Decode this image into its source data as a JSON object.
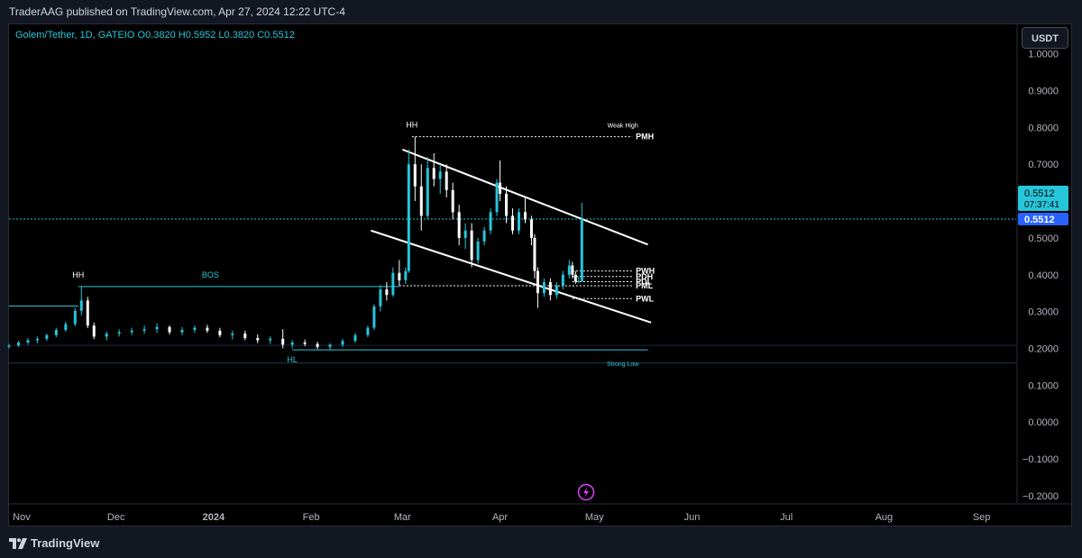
{
  "header": {
    "publisher": "TraderAAG published on TradingView.com, Apr 27, 2024 12:22 UTC-4"
  },
  "legend": {
    "text": "Golem/Tether, 1D, GATEIO  O0.3820  H0.5952  L0.3820  C0.5512"
  },
  "currency_button": "USDT",
  "branding": {
    "name": "TradingView",
    "logo_icon": "tradingview-logo-icon"
  },
  "colors": {
    "up": "#26c6da",
    "down": "#ffffff",
    "accent": "#2962ff",
    "background": "#000000"
  },
  "chart_data": {
    "type": "candlestick",
    "symbol": "Golem/Tether",
    "interval": "1D",
    "exchange": "GATEIO",
    "last_price": "0.5512",
    "countdown": "07:37:41",
    "y_axis": {
      "ticks": [
        "1.0000",
        "0.9000",
        "0.8000",
        "0.7000",
        "0.6000",
        "0.5000",
        "0.4000",
        "0.3000",
        "0.2000",
        "0.1000",
        "0.0000",
        "−0.1000",
        "−0.2000"
      ],
      "ylim": [
        -0.22,
        1.08
      ]
    },
    "x_axis": {
      "ticks": [
        "Nov",
        "Dec",
        "2024",
        "Feb",
        "Mar",
        "Apr",
        "May",
        "Jun",
        "Jul",
        "Aug",
        "Sep"
      ],
      "range": [
        "2023-10-28",
        "2024-09-12"
      ]
    },
    "candles": [
      {
        "date": "2023-10-28",
        "o": 0.205,
        "h": 0.212,
        "l": 0.2,
        "c": 0.208
      },
      {
        "date": "2023-10-31",
        "o": 0.208,
        "h": 0.22,
        "l": 0.204,
        "c": 0.216
      },
      {
        "date": "2023-11-03",
        "o": 0.216,
        "h": 0.228,
        "l": 0.21,
        "c": 0.222
      },
      {
        "date": "2023-11-06",
        "o": 0.222,
        "h": 0.232,
        "l": 0.214,
        "c": 0.226
      },
      {
        "date": "2023-11-09",
        "o": 0.226,
        "h": 0.24,
        "l": 0.22,
        "c": 0.236
      },
      {
        "date": "2023-11-12",
        "o": 0.236,
        "h": 0.256,
        "l": 0.23,
        "c": 0.25
      },
      {
        "date": "2023-11-15",
        "o": 0.25,
        "h": 0.272,
        "l": 0.245,
        "c": 0.266
      },
      {
        "date": "2023-11-18",
        "o": 0.266,
        "h": 0.31,
        "l": 0.26,
        "c": 0.302
      },
      {
        "date": "2023-11-20",
        "o": 0.302,
        "h": 0.368,
        "l": 0.29,
        "c": 0.33
      },
      {
        "date": "2023-11-22",
        "o": 0.33,
        "h": 0.34,
        "l": 0.255,
        "c": 0.262
      },
      {
        "date": "2023-11-24",
        "o": 0.262,
        "h": 0.27,
        "l": 0.225,
        "c": 0.232
      },
      {
        "date": "2023-11-28",
        "o": 0.232,
        "h": 0.246,
        "l": 0.222,
        "c": 0.24
      },
      {
        "date": "2023-12-02",
        "o": 0.24,
        "h": 0.252,
        "l": 0.232,
        "c": 0.244
      },
      {
        "date": "2023-12-06",
        "o": 0.244,
        "h": 0.256,
        "l": 0.236,
        "c": 0.248
      },
      {
        "date": "2023-12-10",
        "o": 0.248,
        "h": 0.262,
        "l": 0.24,
        "c": 0.252
      },
      {
        "date": "2023-12-14",
        "o": 0.252,
        "h": 0.268,
        "l": 0.242,
        "c": 0.258
      },
      {
        "date": "2023-12-18",
        "o": 0.258,
        "h": 0.262,
        "l": 0.238,
        "c": 0.244
      },
      {
        "date": "2023-12-22",
        "o": 0.244,
        "h": 0.258,
        "l": 0.236,
        "c": 0.25
      },
      {
        "date": "2023-12-26",
        "o": 0.25,
        "h": 0.262,
        "l": 0.242,
        "c": 0.256
      },
      {
        "date": "2023-12-30",
        "o": 0.256,
        "h": 0.264,
        "l": 0.242,
        "c": 0.248
      },
      {
        "date": "2024-01-03",
        "o": 0.248,
        "h": 0.256,
        "l": 0.23,
        "c": 0.236
      },
      {
        "date": "2024-01-07",
        "o": 0.236,
        "h": 0.248,
        "l": 0.224,
        "c": 0.24
      },
      {
        "date": "2024-01-11",
        "o": 0.24,
        "h": 0.248,
        "l": 0.222,
        "c": 0.228
      },
      {
        "date": "2024-01-15",
        "o": 0.228,
        "h": 0.238,
        "l": 0.214,
        "c": 0.222
      },
      {
        "date": "2024-01-19",
        "o": 0.222,
        "h": 0.232,
        "l": 0.212,
        "c": 0.226
      },
      {
        "date": "2024-01-23",
        "o": 0.226,
        "h": 0.252,
        "l": 0.2,
        "c": 0.21
      },
      {
        "date": "2024-01-26",
        "o": 0.21,
        "h": 0.222,
        "l": 0.2,
        "c": 0.216
      },
      {
        "date": "2024-01-30",
        "o": 0.216,
        "h": 0.224,
        "l": 0.206,
        "c": 0.212
      },
      {
        "date": "2024-02-03",
        "o": 0.212,
        "h": 0.218,
        "l": 0.198,
        "c": 0.204
      },
      {
        "date": "2024-02-07",
        "o": 0.204,
        "h": 0.214,
        "l": 0.196,
        "c": 0.21
      },
      {
        "date": "2024-02-11",
        "o": 0.21,
        "h": 0.226,
        "l": 0.204,
        "c": 0.22
      },
      {
        "date": "2024-02-15",
        "o": 0.22,
        "h": 0.242,
        "l": 0.216,
        "c": 0.236
      },
      {
        "date": "2024-02-19",
        "o": 0.236,
        "h": 0.262,
        "l": 0.23,
        "c": 0.256
      },
      {
        "date": "2024-02-21",
        "o": 0.256,
        "h": 0.32,
        "l": 0.25,
        "c": 0.314
      },
      {
        "date": "2024-02-23",
        "o": 0.314,
        "h": 0.372,
        "l": 0.3,
        "c": 0.36
      },
      {
        "date": "2024-02-25",
        "o": 0.36,
        "h": 0.38,
        "l": 0.33,
        "c": 0.345
      },
      {
        "date": "2024-02-27",
        "o": 0.345,
        "h": 0.42,
        "l": 0.34,
        "c": 0.405
      },
      {
        "date": "2024-02-29",
        "o": 0.405,
        "h": 0.44,
        "l": 0.37,
        "c": 0.385
      },
      {
        "date": "2024-03-02",
        "o": 0.385,
        "h": 0.42,
        "l": 0.375,
        "c": 0.41
      },
      {
        "date": "2024-03-03",
        "o": 0.41,
        "h": 0.74,
        "l": 0.405,
        "c": 0.7
      },
      {
        "date": "2024-03-05",
        "o": 0.7,
        "h": 0.775,
        "l": 0.6,
        "c": 0.64
      },
      {
        "date": "2024-03-07",
        "o": 0.64,
        "h": 0.7,
        "l": 0.52,
        "c": 0.56
      },
      {
        "date": "2024-03-09",
        "o": 0.56,
        "h": 0.72,
        "l": 0.55,
        "c": 0.69
      },
      {
        "date": "2024-03-11",
        "o": 0.69,
        "h": 0.73,
        "l": 0.64,
        "c": 0.66
      },
      {
        "date": "2024-03-13",
        "o": 0.66,
        "h": 0.7,
        "l": 0.62,
        "c": 0.68
      },
      {
        "date": "2024-03-15",
        "o": 0.68,
        "h": 0.7,
        "l": 0.61,
        "c": 0.63
      },
      {
        "date": "2024-03-17",
        "o": 0.63,
        "h": 0.65,
        "l": 0.55,
        "c": 0.57
      },
      {
        "date": "2024-03-19",
        "o": 0.57,
        "h": 0.59,
        "l": 0.48,
        "c": 0.5
      },
      {
        "date": "2024-03-21",
        "o": 0.5,
        "h": 0.54,
        "l": 0.47,
        "c": 0.52
      },
      {
        "date": "2024-03-23",
        "o": 0.52,
        "h": 0.54,
        "l": 0.42,
        "c": 0.44
      },
      {
        "date": "2024-03-25",
        "o": 0.44,
        "h": 0.5,
        "l": 0.43,
        "c": 0.49
      },
      {
        "date": "2024-03-27",
        "o": 0.49,
        "h": 0.53,
        "l": 0.48,
        "c": 0.52
      },
      {
        "date": "2024-03-29",
        "o": 0.52,
        "h": 0.58,
        "l": 0.51,
        "c": 0.57
      },
      {
        "date": "2024-03-31",
        "o": 0.57,
        "h": 0.66,
        "l": 0.56,
        "c": 0.65
      },
      {
        "date": "2024-04-01",
        "o": 0.65,
        "h": 0.71,
        "l": 0.6,
        "c": 0.62
      },
      {
        "date": "2024-04-03",
        "o": 0.62,
        "h": 0.64,
        "l": 0.54,
        "c": 0.56
      },
      {
        "date": "2024-04-05",
        "o": 0.56,
        "h": 0.58,
        "l": 0.51,
        "c": 0.52
      },
      {
        "date": "2024-04-07",
        "o": 0.52,
        "h": 0.58,
        "l": 0.51,
        "c": 0.57
      },
      {
        "date": "2024-04-09",
        "o": 0.57,
        "h": 0.61,
        "l": 0.54,
        "c": 0.55
      },
      {
        "date": "2024-04-11",
        "o": 0.55,
        "h": 0.56,
        "l": 0.48,
        "c": 0.5
      },
      {
        "date": "2024-04-12",
        "o": 0.5,
        "h": 0.51,
        "l": 0.39,
        "c": 0.41
      },
      {
        "date": "2024-04-13",
        "o": 0.41,
        "h": 0.42,
        "l": 0.31,
        "c": 0.35
      },
      {
        "date": "2024-04-15",
        "o": 0.35,
        "h": 0.39,
        "l": 0.34,
        "c": 0.38
      },
      {
        "date": "2024-04-17",
        "o": 0.38,
        "h": 0.39,
        "l": 0.33,
        "c": 0.345
      },
      {
        "date": "2024-04-19",
        "o": 0.345,
        "h": 0.38,
        "l": 0.335,
        "c": 0.37
      },
      {
        "date": "2024-04-21",
        "o": 0.37,
        "h": 0.41,
        "l": 0.36,
        "c": 0.4
      },
      {
        "date": "2024-04-23",
        "o": 0.4,
        "h": 0.44,
        "l": 0.39,
        "c": 0.425
      },
      {
        "date": "2024-04-24",
        "o": 0.425,
        "h": 0.435,
        "l": 0.39,
        "c": 0.4
      },
      {
        "date": "2024-04-25",
        "o": 0.4,
        "h": 0.41,
        "l": 0.375,
        "c": 0.382
      },
      {
        "date": "2024-04-26",
        "o": 0.382,
        "h": 0.395,
        "l": 0.378,
        "c": 0.382
      },
      {
        "date": "2024-04-27",
        "o": 0.382,
        "h": 0.5952,
        "l": 0.382,
        "c": 0.5512
      }
    ],
    "channel_lines": [
      {
        "from": {
          "date": "2024-03-01",
          "y": 0.74
        },
        "to": {
          "date": "2024-05-18",
          "y": 0.482
        }
      },
      {
        "from": {
          "date": "2024-02-20",
          "y": 0.52
        },
        "to": {
          "date": "2024-05-19",
          "y": 0.27
        }
      }
    ],
    "annotations": [
      {
        "text": "HH",
        "date": "2023-11-19",
        "y": 0.368,
        "position": "above"
      },
      {
        "text": "HH",
        "date": "2024-03-04",
        "y": 0.775,
        "position": "above"
      },
      {
        "text": "BOS",
        "date": "2023-12-31",
        "y": 0.368,
        "position": "above"
      },
      {
        "text": "HL",
        "date": "2024-01-26",
        "y": 0.196,
        "position": "below"
      },
      {
        "text": "Weak High",
        "date": "2024-05-10",
        "y": 0.775,
        "position": "above"
      },
      {
        "text": "Strong Low",
        "date": "2024-05-10",
        "y": 0.16,
        "position": "right"
      }
    ],
    "levels": [
      {
        "label": "PMH",
        "y": 0.775,
        "from": "2024-03-04",
        "to": "2024-05-13",
        "style": "dotted",
        "color": "#ffffff"
      },
      {
        "label": "PWH",
        "y": 0.41,
        "from": "2024-04-24",
        "to": "2024-05-13",
        "style": "dotted",
        "color": "#ffffff"
      },
      {
        "label": "PDH",
        "y": 0.395,
        "from": "2024-04-24",
        "to": "2024-05-13",
        "style": "dotted",
        "color": "#ffffff"
      },
      {
        "label": "PDL",
        "y": 0.381,
        "from": "2024-04-24",
        "to": "2024-05-13",
        "style": "dotted",
        "color": "#ffffff"
      },
      {
        "label": "PML",
        "y": 0.37,
        "from": "2024-02-29",
        "to": "2024-05-13",
        "style": "dotted",
        "color": "#ffffff"
      },
      {
        "label": "PWL",
        "y": 0.335,
        "from": "2024-04-24",
        "to": "2024-05-13",
        "style": "dotted",
        "color": "#ffffff"
      },
      {
        "label": "",
        "y": 0.368,
        "from": "2023-11-19",
        "to": "2024-02-29",
        "style": "solid",
        "color": "#26c6da"
      },
      {
        "label": "",
        "y": 0.315,
        "from": "2023-10-28",
        "to": "2023-11-19",
        "style": "solid",
        "color": "#26c6da"
      },
      {
        "label": "",
        "y": 0.196,
        "from": "2024-01-26",
        "to": "2024-05-18",
        "style": "solid",
        "color": "#26c6da"
      },
      {
        "label": "",
        "y": 0.16,
        "from": "2023-10-28",
        "to": "2024-09-12",
        "style": "solid",
        "color": "#1f3b4d"
      },
      {
        "label": "",
        "y": 0.208,
        "from": "2023-10-28",
        "to": "2024-09-12",
        "style": "solid",
        "color": "#1a2a3a"
      },
      {
        "label": "",
        "y": 0.5512,
        "from": "2023-10-28",
        "to": "2024-09-12",
        "style": "dotted",
        "color": "#26c6da"
      }
    ]
  }
}
